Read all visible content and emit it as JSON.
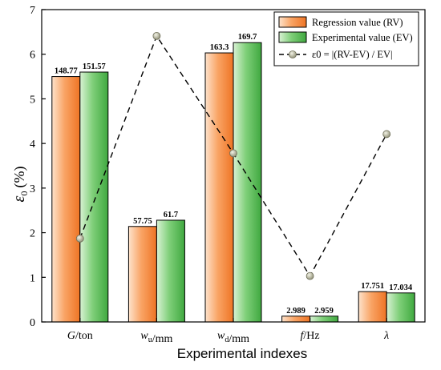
{
  "chart_data": {
    "type": "bar",
    "categories": [
      {
        "parts": [
          {
            "t": "G",
            "i": true
          },
          {
            "t": "/ton"
          }
        ]
      },
      {
        "parts": [
          {
            "t": "w",
            "i": true
          },
          {
            "t": "u",
            "sub": true
          },
          {
            "t": "/mm"
          }
        ]
      },
      {
        "parts": [
          {
            "t": "w",
            "i": true
          },
          {
            "t": "d",
            "sub": true
          },
          {
            "t": "/mm"
          }
        ]
      },
      {
        "parts": [
          {
            "t": "f",
            "i": true
          },
          {
            "t": "/Hz"
          }
        ]
      },
      {
        "parts": [
          {
            "t": "λ",
            "i": true
          }
        ]
      }
    ],
    "series": [
      {
        "name": "Regression value (RV)",
        "color": "#f58a3c",
        "values": [
          5.5,
          2.14,
          6.03,
          0.13,
          0.68
        ],
        "labels": [
          "148.77",
          "57.75",
          "163.3",
          "2.989",
          "17.751"
        ]
      },
      {
        "name": "Experimental value (EV)",
        "color": "#5bbf5b",
        "values": [
          5.6,
          2.28,
          6.26,
          0.13,
          0.65
        ],
        "labels": [
          "151.57",
          "61.7",
          "169.7",
          "2.959",
          "17.034"
        ]
      }
    ],
    "error_series": {
      "name": "ε0 = |(RV-EV) / EV|",
      "values": [
        1.87,
        6.41,
        3.78,
        1.03,
        4.21
      ],
      "style": "dashed line with markers"
    },
    "xlabel": "Experimental indexes",
    "ylabel": "ε0 (%)",
    "ylim": [
      0,
      7
    ],
    "yticks": [
      "0",
      "1",
      "2",
      "3",
      "4",
      "5",
      "6",
      "7"
    ],
    "grid": false,
    "legend_position": "top-right"
  }
}
